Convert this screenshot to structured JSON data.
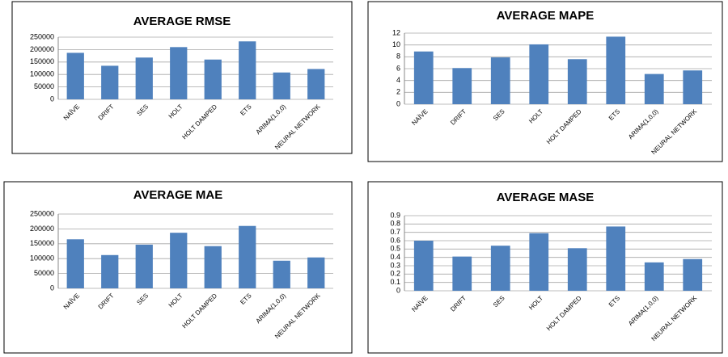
{
  "chart_data": [
    {
      "type": "bar",
      "title": "AVERAGE RMSE",
      "categories": [
        "NAÏVE",
        "DRIFT",
        "SES",
        "HOLT",
        "HOLT DAMPED",
        "ETS",
        "ARIMA(1,0,0)",
        "NEURAL NETWORK"
      ],
      "values": [
        187000,
        135000,
        168000,
        210000,
        160000,
        233000,
        108000,
        122000
      ],
      "color": "#4f81bd",
      "ylim": [
        0,
        250000
      ],
      "yticks": [
        0,
        50000,
        100000,
        150000,
        200000,
        250000
      ],
      "grid": true
    },
    {
      "type": "bar",
      "title": "AVERAGE MAPE",
      "categories": [
        "NAÏVE",
        "DRIFT",
        "SES",
        "HOLT",
        "HOLT DAMPED",
        "ETS",
        "ARIMA(1,0,0)",
        "NEURAL NETWORK"
      ],
      "values": [
        8.9,
        6.1,
        7.9,
        10.1,
        7.6,
        11.4,
        5.1,
        5.7
      ],
      "color": "#4f81bd",
      "ylim": [
        0,
        12
      ],
      "yticks": [
        0,
        2,
        4,
        6,
        8,
        10,
        12
      ],
      "grid": true
    },
    {
      "type": "bar",
      "title": "AVERAGE MAE",
      "categories": [
        "NAÏVE",
        "DRIFT",
        "SES",
        "HOLT",
        "HOLT DAMPED",
        "ETS",
        "ARIMA(1,0,0)",
        "NEURAL NETWORK"
      ],
      "values": [
        165000,
        112000,
        147000,
        187000,
        142000,
        210000,
        93000,
        104000
      ],
      "color": "#4f81bd",
      "ylim": [
        0,
        250000
      ],
      "yticks": [
        0,
        50000,
        100000,
        150000,
        200000,
        250000
      ],
      "grid": true
    },
    {
      "type": "bar",
      "title": "AVERAGE MASE",
      "categories": [
        "NAÏVE",
        "DRIFT",
        "SES",
        "HOLT",
        "HOLT DAMPED",
        "ETS",
        "ARIMA(1,0,0)",
        "NEURAL NETWORK"
      ],
      "values": [
        0.6,
        0.41,
        0.54,
        0.69,
        0.51,
        0.77,
        0.34,
        0.38
      ],
      "color": "#4f81bd",
      "ylim": [
        0,
        0.9
      ],
      "yticks": [
        0,
        0.1,
        0.2,
        0.3,
        0.4,
        0.5,
        0.6,
        0.7,
        0.8,
        0.9
      ],
      "grid": true
    }
  ]
}
